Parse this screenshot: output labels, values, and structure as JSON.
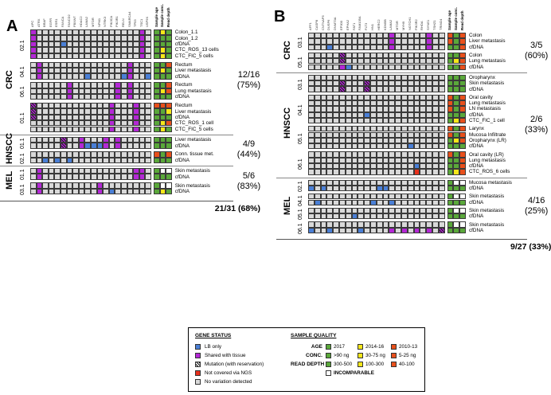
{
  "panel_a": {
    "letter": "A",
    "genes": [
      "APC",
      "ATRX",
      "BRAF",
      "EGFR",
      "ESR1",
      "FANCA",
      "FANCD2",
      "FBXW7",
      "HDAC2",
      "LAMA2",
      "MTOR",
      "NPM1",
      "NTRK3",
      "PIK3CA",
      "PIK3R1",
      "RELN",
      "SMARCA4",
      "TP53",
      "TSC1",
      "USP9X"
    ],
    "quality_headers": [
      "Sample age",
      "Sample conc.",
      "Read depth"
    ],
    "patients": [
      {
        "id": "02.1",
        "cancer": "CRC",
        "samples": [
          {
            "label": "Colon_1.1",
            "lb": [],
            "shared": [
              0,
              18
            ],
            "hatch": [],
            "q": [
              "green",
              "yellow",
              "green"
            ]
          },
          {
            "label": "Colon_1.2",
            "lb": [],
            "shared": [
              0,
              18
            ],
            "hatch": [],
            "q": [
              "green",
              "green",
              "green"
            ]
          },
          {
            "label": "cfDNA",
            "lb": [
              5
            ],
            "shared": [
              0,
              18
            ],
            "hatch": [],
            "q": [
              "green",
              "green",
              "green"
            ]
          },
          {
            "label": "CTC_ROS_13 cells",
            "lb": [],
            "shared": [
              0,
              18
            ],
            "hatch": [],
            "q": [
              "green",
              "yellow",
              "green"
            ]
          },
          {
            "label": "CTC_FIC_5 cells",
            "lb": [],
            "shared": [
              0,
              18
            ],
            "hatch": [],
            "q": [
              "green",
              "yellow",
              "green"
            ]
          }
        ]
      },
      {
        "id": "04.1",
        "cancer": "CRC",
        "samples": [
          {
            "label": "Rectum",
            "lb": [],
            "shared": [
              1,
              16
            ],
            "hatch": [],
            "q": [
              "green",
              "green",
              "red"
            ]
          },
          {
            "label": "Liver metastasis",
            "lb": [],
            "shared": [
              1,
              16
            ],
            "hatch": [],
            "q": [
              "green",
              "yellow",
              "green"
            ]
          },
          {
            "label": "cfDNA",
            "lb": [
              9,
              15,
              19
            ],
            "shared": [
              1,
              16
            ],
            "hatch": [],
            "q": [
              "green",
              "green",
              "green"
            ]
          }
        ]
      },
      {
        "id": "06.1",
        "cancer": "CRC",
        "samples": [
          {
            "label": "Rectum",
            "lb": [],
            "shared": [
              6,
              14,
              16
            ],
            "hatch": [],
            "q": [
              "green",
              "green",
              "red"
            ]
          },
          {
            "label": "Lung metastasis",
            "lb": [],
            "shared": [
              6,
              14,
              16
            ],
            "hatch": [],
            "q": [
              "green",
              "yellow",
              "red"
            ]
          },
          {
            "label": "cfDNA",
            "lb": [],
            "shared": [
              6,
              14,
              16
            ],
            "hatch": [],
            "q": [
              "green",
              "green",
              "green"
            ]
          }
        ]
      },
      {
        "id": "01.1",
        "cancer": "CRC",
        "samples": [
          {
            "label": "Rectum",
            "lb": [],
            "shared": [
              13,
              17
            ],
            "hatch": [
              0
            ],
            "q": [
              "red",
              "red",
              "red"
            ]
          },
          {
            "label": "Liver metastasis",
            "lb": [],
            "shared": [
              13,
              17
            ],
            "hatch": [
              0
            ],
            "q": [
              "green",
              "green",
              "yellow"
            ]
          },
          {
            "label": "cfDNA",
            "lb": [],
            "shared": [
              13,
              17
            ],
            "hatch": [
              0
            ],
            "q": [
              "green",
              "green",
              "green"
            ]
          },
          {
            "label": "CTC_ROS_1 cell",
            "lb": [],
            "shared": [
              13,
              17
            ],
            "hatch": [],
            "q": [
              "green",
              "yellow",
              "red"
            ]
          },
          {
            "label": "CTC_FIC_5 cells",
            "lb": [],
            "shared": [
              13,
              17
            ],
            "hatch": [],
            "q": [
              "green",
              "yellow",
              "green"
            ]
          }
        ]
      },
      {
        "id": "01.1",
        "cancer": "HNSCC",
        "samples": [
          {
            "label": "Liver metastasis",
            "lb": [],
            "shared": [
              8,
              12,
              14
            ],
            "hatch": [
              5
            ],
            "q": [
              "green",
              "green",
              "green"
            ]
          },
          {
            "label": "cfDNA",
            "lb": [
              9,
              10,
              11
            ],
            "shared": [
              8,
              12,
              14
            ],
            "hatch": [
              5
            ],
            "q": [
              "green",
              "green",
              "green"
            ]
          }
        ]
      },
      {
        "id": "02.1",
        "cancer": "HNSCC",
        "samples": [
          {
            "label": "Conn. tissue met.",
            "lb": [],
            "shared": [],
            "hatch": [],
            "q": [
              "red",
              "green",
              "red"
            ]
          },
          {
            "label": "cfDNA",
            "lb": [
              2,
              4,
              6
            ],
            "shared": [],
            "hatch": [],
            "q": [
              "green",
              "green",
              "green"
            ]
          }
        ]
      },
      {
        "id": "01.1",
        "cancer": "MEL",
        "samples": [
          {
            "label": "Skin metastasis",
            "lb": [],
            "shared": [
              1,
              17,
              18
            ],
            "hatch": [],
            "q": [
              "green",
              "white",
              "white"
            ]
          },
          {
            "label": "cfDNA",
            "lb": [],
            "shared": [
              1,
              17,
              18
            ],
            "hatch": [],
            "q": [
              "green",
              "green",
              "green"
            ]
          }
        ]
      },
      {
        "id": "03.1",
        "cancer": "MEL",
        "samples": [
          {
            "label": "Skin metastasis",
            "lb": [],
            "shared": [
              1,
              11
            ],
            "hatch": [],
            "q": [
              "green",
              "white",
              "white"
            ]
          },
          {
            "label": "cfDNA",
            "lb": [
              13
            ],
            "shared": [
              1,
              11
            ],
            "hatch": [],
            "q": [
              "green",
              "yellow",
              "green"
            ]
          }
        ]
      }
    ],
    "cancers": [
      "CRC",
      "HNSCC",
      "MEL"
    ],
    "stats": [
      {
        "cancer": "CRC",
        "fraction": "12/16",
        "percent": "(75%)"
      },
      {
        "cancer": "HNSCC",
        "fraction": "4/9",
        "percent": "(44%)"
      },
      {
        "cancer": "MEL",
        "fraction": "5/6",
        "percent": "(83%)"
      }
    ],
    "total": "21/31 (68%)"
  },
  "panel_b": {
    "letter": "B",
    "genes": [
      "AFF1",
      "CASP8",
      "CNTNAP5",
      "DUSP6",
      "DNMT3A",
      "EP300",
      "EPHA2",
      "FAT1",
      "FAM135A",
      "FLT3",
      "HN1",
      "HERC2",
      "KDM5B",
      "LAMA2",
      "MTOR",
      "MYH9",
      "NOTCH1",
      "PIK3R2",
      "RHOA",
      "SYNE1",
      "TSHZ1",
      "TRIM24"
    ],
    "quality_headers": [
      "Sample age",
      "Sample conc.",
      "Read depth"
    ],
    "patients": [
      {
        "id": "03.1",
        "cancer": "CRC",
        "samples": [
          {
            "label": "Colon",
            "lb": [],
            "shared": [
              13,
              19
            ],
            "hatch": [],
            "q": [
              "red",
              "green",
              "red"
            ]
          },
          {
            "label": "Liver metastasis",
            "lb": [],
            "shared": [
              13,
              19
            ],
            "hatch": [],
            "q": [
              "red",
              "green",
              "red"
            ]
          },
          {
            "label": "cfDNA",
            "lb": [
              3
            ],
            "shared": [
              13,
              19
            ],
            "hatch": [],
            "q": [
              "green",
              "green",
              "red"
            ]
          }
        ]
      },
      {
        "id": "05.1",
        "cancer": "CRC",
        "samples": [
          {
            "label": "Colon",
            "lb": [],
            "shared": [],
            "hatch": [
              5
            ],
            "q": [
              "green",
              "green",
              "red"
            ]
          },
          {
            "label": "Lung metastasis",
            "lb": [],
            "shared": [],
            "hatch": [
              5
            ],
            "q": [
              "green",
              "yellow",
              "red"
            ]
          },
          {
            "label": "cfDNA",
            "lb": [
              6
            ],
            "shared": [
              5
            ],
            "hatch": [],
            "q": [
              "green",
              "green",
              "red"
            ]
          }
        ]
      },
      {
        "id": "03.1",
        "cancer": "HNSCC",
        "samples": [
          {
            "label": "Oropharynx",
            "lb": [],
            "shared": [],
            "hatch": [],
            "q": [
              "green",
              "green",
              "green"
            ]
          },
          {
            "label": "Skin metastasis",
            "lb": [],
            "shared": [],
            "hatch": [
              5,
              9
            ],
            "q": [
              "green",
              "green",
              "green"
            ]
          },
          {
            "label": "cfDNA",
            "lb": [],
            "shared": [],
            "hatch": [
              5,
              9
            ],
            "q": [
              "green",
              "green",
              "green"
            ]
          }
        ]
      },
      {
        "id": "04.1",
        "cancer": "HNSCC",
        "samples": [
          {
            "label": "Oral cavity",
            "lb": [],
            "shared": [],
            "hatch": [],
            "q": [
              "red",
              "green",
              "red"
            ]
          },
          {
            "label": "Lung metastasis",
            "lb": [],
            "shared": [],
            "hatch": [],
            "q": [
              "red",
              "green",
              "red"
            ]
          },
          {
            "label": "LN metastasis",
            "lb": [],
            "shared": [],
            "hatch": [],
            "q": [
              "red",
              "green",
              "red"
            ]
          },
          {
            "label": "cfDNA",
            "lb": [
              9
            ],
            "shared": [],
            "hatch": [],
            "q": [
              "green",
              "green",
              "green"
            ]
          },
          {
            "label": "CTC_FIC_1 cell",
            "lb": [],
            "shared": [],
            "hatch": [],
            "q": [
              "green",
              "yellow",
              "red"
            ]
          }
        ]
      },
      {
        "id": "05.1",
        "cancer": "HNSCC",
        "samples": [
          {
            "label": "Larynx",
            "lb": [],
            "shared": [],
            "hatch": [],
            "q": [
              "red",
              "green",
              "red"
            ]
          },
          {
            "label": "Mucosa Infiltrate",
            "lb": [],
            "shared": [],
            "hatch": [],
            "q": [
              "red",
              "green",
              "red"
            ]
          },
          {
            "label": "Oropharynx (LR)",
            "lb": [],
            "shared": [],
            "hatch": [],
            "q": [
              "green",
              "yellow",
              "red"
            ]
          },
          {
            "label": "cfDNA",
            "lb": [
              16
            ],
            "shared": [],
            "hatch": [],
            "q": [
              "green",
              "green",
              "green"
            ]
          }
        ]
      },
      {
        "id": "06.1",
        "cancer": "HNSCC",
        "samples": [
          {
            "label": "Oral cavity (LR)",
            "lb": [],
            "shared": [],
            "hatch": [],
            "q": [
              "red",
              "green",
              "red"
            ]
          },
          {
            "label": "Lung metastasis",
            "lb": [],
            "shared": [],
            "hatch": [],
            "q": [
              "green",
              "green",
              "red"
            ]
          },
          {
            "label": "cfDNA",
            "lb": [
              17
            ],
            "shared": [],
            "hatch": [],
            "q": [
              "green",
              "green",
              "red"
            ]
          },
          {
            "label": "CTC_ROS_6 cells",
            "lb": [],
            "shared": [],
            "hatch": [],
            "notcov": [
              17
            ],
            "q": [
              "green",
              "yellow",
              "red"
            ]
          }
        ]
      },
      {
        "id": "02.1",
        "cancer": "MEL",
        "samples": [
          {
            "label": "Mucosa metastasis",
            "lb": [],
            "shared": [],
            "hatch": [],
            "q": [
              "green",
              "white",
              "white"
            ]
          },
          {
            "label": "cfDNA",
            "lb": [
              0,
              2,
              11,
              12
            ],
            "shared": [],
            "hatch": [],
            "q": [
              "green",
              "green",
              "green"
            ]
          }
        ]
      },
      {
        "id": "04.1",
        "cancer": "MEL",
        "samples": [
          {
            "label": "Skin metastasis",
            "lb": [],
            "shared": [],
            "hatch": [],
            "q": [
              "green",
              "white",
              "white"
            ]
          },
          {
            "label": "cfDNA",
            "lb": [
              1,
              10,
              13
            ],
            "shared": [],
            "hatch": [],
            "q": [
              "green",
              "green",
              "green"
            ]
          }
        ]
      },
      {
        "id": "05.1",
        "cancer": "MEL",
        "samples": [
          {
            "label": "Skin metastasis",
            "lb": [],
            "shared": [],
            "hatch": [],
            "q": [
              "green",
              "white",
              "white"
            ]
          },
          {
            "label": "cfDNA",
            "lb": [
              7
            ],
            "shared": [],
            "hatch": [],
            "q": [
              "green",
              "green",
              "green"
            ]
          }
        ]
      },
      {
        "id": "06.1",
        "cancer": "MEL",
        "samples": [
          {
            "label": "Skin metastasis",
            "lb": [],
            "shared": [],
            "hatch": [],
            "q": [
              "green",
              "white",
              "white"
            ]
          },
          {
            "label": "cfDNA",
            "lb": [
              0,
              3,
              8
            ],
            "shared": [
              13,
              15,
              17,
              19
            ],
            "hatch": [
              21
            ],
            "q": [
              "green",
              "green",
              "green"
            ]
          }
        ]
      }
    ],
    "cancers": [
      "CRC",
      "HNSCC",
      "MEL"
    ],
    "stats": [
      {
        "cancer": "CRC",
        "fraction": "3/5",
        "percent": "(60%)"
      },
      {
        "cancer": "HNSCC",
        "fraction": "2/6",
        "percent": "(33%)"
      },
      {
        "cancer": "MEL",
        "fraction": "4/16",
        "percent": "(25%)"
      }
    ],
    "total": "9/27 (33%)"
  },
  "legend": {
    "gene_status_title": "GENE STATUS",
    "gene_status": [
      {
        "key": "lb",
        "label": "LB only"
      },
      {
        "key": "shared",
        "label": "Shared with tissue"
      },
      {
        "key": "hatch",
        "label": "Mutation (with reservation)"
      },
      {
        "key": "notcov",
        "label": "Not covered via NGS"
      },
      {
        "key": "none",
        "label": "No variation detected"
      }
    ],
    "sample_quality_title": "SAMPLE QUALITY",
    "quality_rows": [
      {
        "label": "AGE",
        "green": "2017",
        "yellow": "2014-16",
        "red": "2010-13"
      },
      {
        "label": "CONC.",
        "green": ">90 ng",
        "yellow": "30-75 ng",
        "red": "5-25 ng"
      },
      {
        "label": "READ DEPTH",
        "green": "300-500",
        "yellow": "100-300",
        "red": "40-100"
      }
    ],
    "incomparable_label": "INCOMPARABLE"
  },
  "colors": {
    "lb_only": "#4a7fd6",
    "shared": "#b428d6",
    "not_covered": "#e8301c",
    "no_variation": "#d9d9d9",
    "q_green": "#5aa83a",
    "q_yellow": "#f5e71a",
    "q_red": "#e8501c"
  }
}
